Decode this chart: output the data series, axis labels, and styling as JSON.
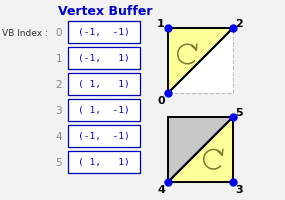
{
  "title": "Vertex Buffer",
  "title_color": "#0000cc",
  "title_fontsize": 9,
  "bg_color": "#f2f2f2",
  "vb_label": "VB Index :",
  "indices": [
    0,
    1,
    2,
    3,
    4,
    5
  ],
  "coords": [
    "(-1,  -1)",
    "(-1,   1)",
    "( 1,   1)",
    "( 1,  -1)",
    "(-1,  -1)",
    "( 1,   1)"
  ],
  "box_color": "#0000bb",
  "text_color": "#0000cc",
  "label_color": "#888888",
  "dot_color": "#0000ee",
  "yellow_fill": "#ffff99",
  "gray_fill": "#c8c8c8",
  "arrow_color": "#7a7a30",
  "white_fill": "#ffffff",
  "dash_color": "#bbbbbb"
}
